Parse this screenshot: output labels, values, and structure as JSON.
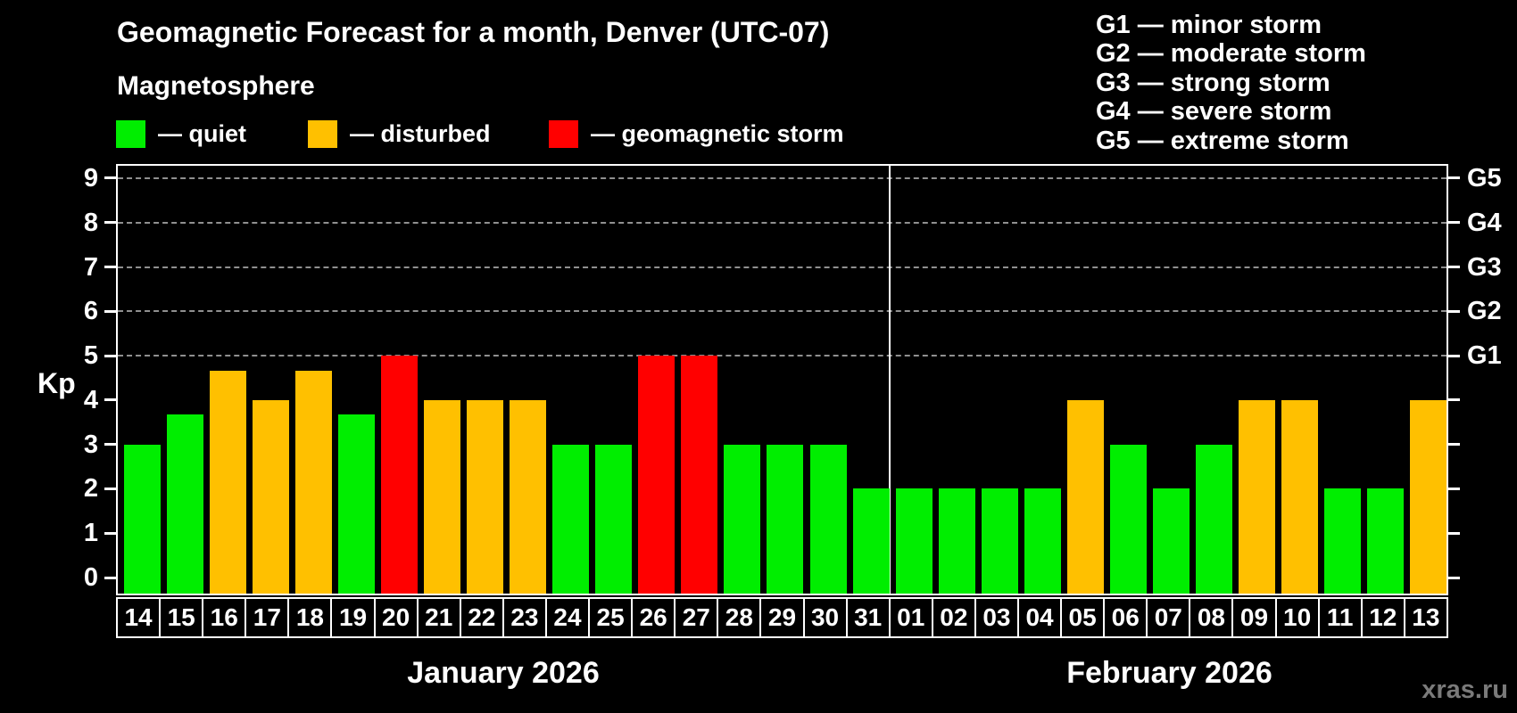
{
  "title": "Geomagnetic Forecast for a month, Denver (UTC-07)",
  "subtitle": "Magnetosphere",
  "legend": {
    "items": [
      {
        "key": "quiet",
        "swatch_color": "#00ee00",
        "label": "— quiet"
      },
      {
        "key": "disturbed",
        "swatch_color": "#ffc000",
        "label": "— disturbed"
      },
      {
        "key": "storm",
        "swatch_color": "#ff0000",
        "label": "— geomagnetic storm"
      }
    ]
  },
  "g_scale_legend": [
    "G1 — minor storm",
    "G2 — moderate storm",
    "G3 — strong storm",
    "G4 — severe storm",
    "G5 — extreme storm"
  ],
  "watermark": "xras.ru",
  "chart_data": {
    "type": "bar",
    "ylabel": "Kp",
    "ylim": [
      0,
      9
    ],
    "y_ticks": [
      0,
      1,
      2,
      3,
      4,
      5,
      6,
      7,
      8,
      9
    ],
    "gridlines_at_kp": [
      5,
      6,
      7,
      8,
      9
    ],
    "right_axis_labels": [
      {
        "kp": 5,
        "label": "G1"
      },
      {
        "kp": 6,
        "label": "G2"
      },
      {
        "kp": 7,
        "label": "G3"
      },
      {
        "kp": 8,
        "label": "G4"
      },
      {
        "kp": 9,
        "label": "G5"
      }
    ],
    "status_colors": {
      "quiet": "#00ee00",
      "disturbed": "#ffc000",
      "storm": "#ff0000"
    },
    "months": [
      {
        "label": "January 2026",
        "days": [
          {
            "day": "14",
            "kp": 3,
            "status": "quiet"
          },
          {
            "day": "15",
            "kp": 3.67,
            "status": "quiet"
          },
          {
            "day": "16",
            "kp": 4.67,
            "status": "disturbed"
          },
          {
            "day": "17",
            "kp": 4,
            "status": "disturbed"
          },
          {
            "day": "18",
            "kp": 4.67,
            "status": "disturbed"
          },
          {
            "day": "19",
            "kp": 3.67,
            "status": "quiet"
          },
          {
            "day": "20",
            "kp": 5,
            "status": "storm"
          },
          {
            "day": "21",
            "kp": 4,
            "status": "disturbed"
          },
          {
            "day": "22",
            "kp": 4,
            "status": "disturbed"
          },
          {
            "day": "23",
            "kp": 4,
            "status": "disturbed"
          },
          {
            "day": "24",
            "kp": 3,
            "status": "quiet"
          },
          {
            "day": "25",
            "kp": 3,
            "status": "quiet"
          },
          {
            "day": "26",
            "kp": 5,
            "status": "storm"
          },
          {
            "day": "27",
            "kp": 5,
            "status": "storm"
          },
          {
            "day": "28",
            "kp": 3,
            "status": "quiet"
          },
          {
            "day": "29",
            "kp": 3,
            "status": "quiet"
          },
          {
            "day": "30",
            "kp": 3,
            "status": "quiet"
          },
          {
            "day": "31",
            "kp": 2,
            "status": "quiet"
          }
        ]
      },
      {
        "label": "February 2026",
        "days": [
          {
            "day": "01",
            "kp": 2,
            "status": "quiet"
          },
          {
            "day": "02",
            "kp": 2,
            "status": "quiet"
          },
          {
            "day": "03",
            "kp": 2,
            "status": "quiet"
          },
          {
            "day": "04",
            "kp": 2,
            "status": "quiet"
          },
          {
            "day": "05",
            "kp": 4,
            "status": "disturbed"
          },
          {
            "day": "06",
            "kp": 3,
            "status": "quiet"
          },
          {
            "day": "07",
            "kp": 2,
            "status": "quiet"
          },
          {
            "day": "08",
            "kp": 3,
            "status": "quiet"
          },
          {
            "day": "09",
            "kp": 4,
            "status": "disturbed"
          },
          {
            "day": "10",
            "kp": 4,
            "status": "disturbed"
          },
          {
            "day": "11",
            "kp": 2,
            "status": "quiet"
          },
          {
            "day": "12",
            "kp": 2,
            "status": "quiet"
          },
          {
            "day": "13",
            "kp": 4,
            "status": "disturbed"
          }
        ]
      }
    ]
  }
}
